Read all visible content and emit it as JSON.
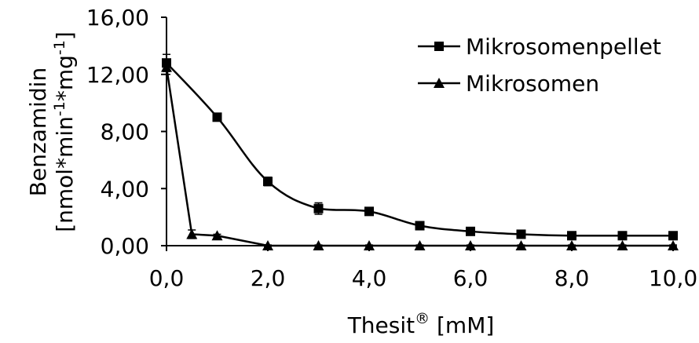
{
  "chart_data": {
    "type": "line",
    "ylabel_line1": "Benzamidin",
    "ylabel_line2_parts": [
      "[nmol*min",
      "-1",
      "*mg",
      "-1",
      "]"
    ],
    "xlabel_parts": [
      "Thesit",
      "®",
      " [mM]"
    ],
    "xlim": [
      0,
      10
    ],
    "ylim": [
      0,
      16
    ],
    "x_ticks": [
      0,
      2,
      4,
      6,
      8,
      10
    ],
    "x_tick_labels": [
      "0,0",
      "2,0",
      "4,0",
      "6,0",
      "8,0",
      "10,0"
    ],
    "y_ticks": [
      0,
      4,
      8,
      12,
      16
    ],
    "y_tick_labels": [
      "0,00",
      "4,00",
      "8,00",
      "12,00",
      "16,00"
    ],
    "grid": false,
    "legend_position": "top-right",
    "series": [
      {
        "name": "Mikrosomenpellet",
        "marker": "square",
        "x": [
          0,
          1,
          2,
          3,
          4,
          5,
          6,
          7,
          8,
          9,
          10
        ],
        "y": [
          12.8,
          9.0,
          4.5,
          2.6,
          2.4,
          1.4,
          1.0,
          0.8,
          0.7,
          0.7,
          0.7
        ],
        "error": [
          0.6,
          0.2,
          0.3,
          0.4,
          0.2,
          0.15,
          0.1,
          0.1,
          0.1,
          0.1,
          0.1
        ]
      },
      {
        "name": "Mikrosomen",
        "marker": "triangle",
        "x": [
          0,
          0.5,
          1,
          2,
          3,
          4,
          5,
          6,
          7,
          8,
          9,
          10
        ],
        "y": [
          12.5,
          0.8,
          0.7,
          0.0,
          0.0,
          0.0,
          0.0,
          0.0,
          0.0,
          0.0,
          0.0,
          0.0
        ],
        "error": [
          0.5,
          0.3,
          0.1,
          0.05,
          0.05,
          0.05,
          0.05,
          0.05,
          0.05,
          0.05,
          0.05,
          0.05
        ]
      }
    ]
  }
}
